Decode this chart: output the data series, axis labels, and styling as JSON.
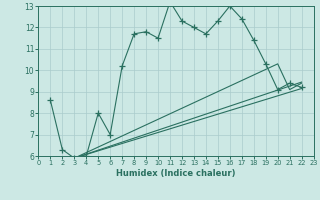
{
  "xlabel": "Humidex (Indice chaleur)",
  "bg_color": "#cce8e4",
  "line_color": "#2a7060",
  "grid_color": "#aacccc",
  "xlim": [
    0,
    23
  ],
  "ylim": [
    6,
    13
  ],
  "yticks": [
    6,
    7,
    8,
    9,
    10,
    11,
    12,
    13
  ],
  "xticks": [
    0,
    1,
    2,
    3,
    4,
    5,
    6,
    7,
    8,
    9,
    10,
    11,
    12,
    13,
    14,
    15,
    16,
    17,
    18,
    19,
    20,
    21,
    22,
    23
  ],
  "main_line": {
    "x": [
      1,
      2,
      3,
      4,
      5,
      6,
      7,
      8,
      9,
      10,
      11,
      12,
      13,
      14,
      15,
      16,
      17,
      18,
      19,
      20,
      21,
      22
    ],
    "y": [
      8.6,
      6.3,
      5.9,
      6.0,
      8.0,
      7.0,
      10.2,
      11.7,
      11.8,
      11.5,
      13.2,
      12.3,
      12.0,
      11.7,
      12.3,
      13.0,
      12.4,
      11.4,
      10.3,
      9.1,
      9.4,
      9.2
    ]
  },
  "straight_lines": [
    {
      "x": [
        3,
        22
      ],
      "y": [
        5.9,
        9.15
      ]
    },
    {
      "x": [
        3,
        22
      ],
      "y": [
        5.9,
        9.45
      ]
    },
    {
      "x": [
        3,
        20,
        21,
        22
      ],
      "y": [
        5.9,
        10.3,
        9.1,
        9.4
      ]
    }
  ]
}
